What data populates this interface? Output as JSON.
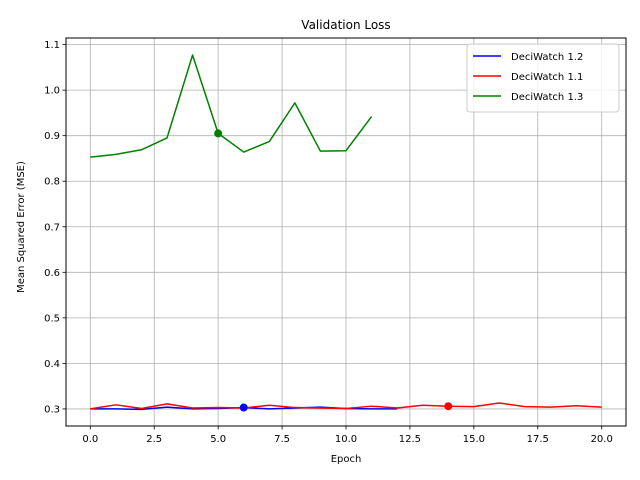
{
  "chart_data": {
    "type": "line",
    "title": "Validation Loss",
    "xlabel": "Epoch",
    "ylabel": "Mean Squared Error (MSE)",
    "xlim": [
      -0.95,
      20.95
    ],
    "ylim": [
      0.2625,
      1.1145
    ],
    "xticks": [
      0.0,
      2.5,
      5.0,
      7.5,
      10.0,
      12.5,
      15.0,
      17.5,
      20.0
    ],
    "xtick_labels": [
      "0.0",
      "2.5",
      "5.0",
      "7.5",
      "10.0",
      "12.5",
      "15.0",
      "17.5",
      "20.0"
    ],
    "yticks": [
      0.3,
      0.4,
      0.5,
      0.6,
      0.7,
      0.8,
      0.9,
      1.0,
      1.1
    ],
    "ytick_labels": [
      "0.3",
      "0.4",
      "0.5",
      "0.6",
      "0.7",
      "0.8",
      "0.9",
      "1.0",
      "1.1"
    ],
    "grid": true,
    "legend_position": "top-right",
    "series": [
      {
        "name": "DeciWatch 1.2",
        "color": "#0000ff",
        "x": [
          0,
          1,
          2,
          3,
          4,
          5,
          6,
          7,
          8,
          9,
          10,
          11,
          12
        ],
        "y": [
          0.3,
          0.3,
          0.299,
          0.304,
          0.3,
          0.301,
          0.303,
          0.3,
          0.302,
          0.304,
          0.301,
          0.3,
          0.3
        ],
        "best": {
          "x": 6,
          "y": 0.303
        }
      },
      {
        "name": "DeciWatch 1.1",
        "color": "#ff0000",
        "x": [
          0,
          1,
          2,
          3,
          4,
          5,
          6,
          7,
          8,
          9,
          10,
          11,
          12,
          13,
          14,
          15,
          16,
          17,
          18,
          19,
          20
        ],
        "y": [
          0.3,
          0.309,
          0.301,
          0.311,
          0.302,
          0.303,
          0.302,
          0.308,
          0.303,
          0.302,
          0.301,
          0.306,
          0.302,
          0.308,
          0.306,
          0.305,
          0.313,
          0.305,
          0.304,
          0.307,
          0.304
        ],
        "best": {
          "x": 14,
          "y": 0.306
        }
      },
      {
        "name": "DeciWatch 1.3",
        "color": "#008000",
        "x": [
          0,
          1,
          2,
          3,
          4,
          5,
          6,
          7,
          8,
          9,
          10,
          11
        ],
        "y": [
          0.853,
          0.859,
          0.869,
          0.895,
          1.077,
          0.905,
          0.864,
          0.887,
          0.972,
          0.866,
          0.867,
          0.942
        ],
        "best": {
          "x": 5,
          "y": 0.905
        }
      }
    ]
  }
}
